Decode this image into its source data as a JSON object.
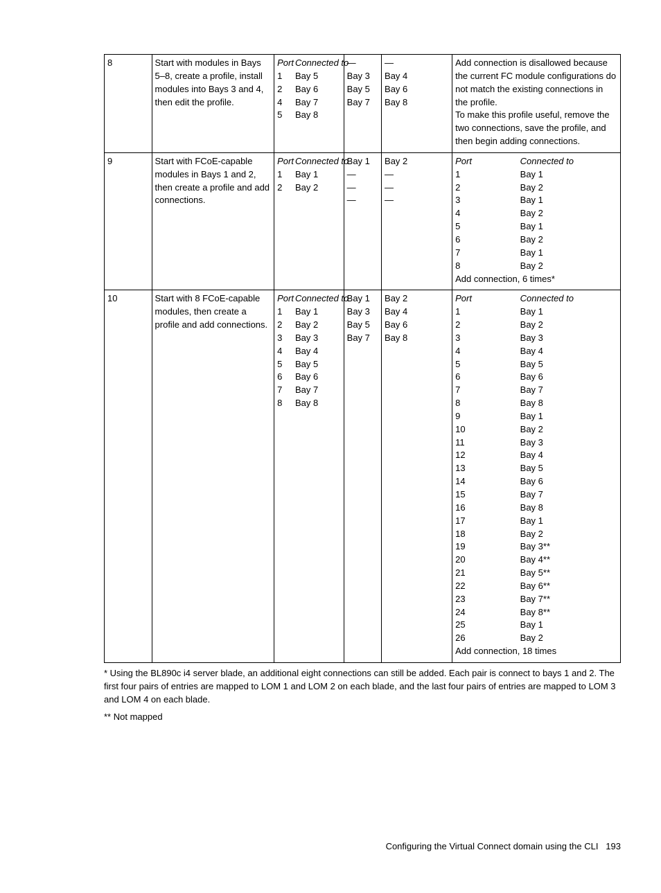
{
  "table": {
    "columns": [
      "c1",
      "c2",
      "c3",
      "c4",
      "c5",
      "c6"
    ],
    "rows": [
      {
        "num": "8",
        "desc": "Start with modules in Bays 5–8, create a profile, install modules into Bays 3 and 4, then edit the profile.",
        "col3": {
          "header": [
            "Port",
            "Connected to"
          ],
          "rows": [
            [
              "1",
              "Bay 5"
            ],
            [
              "2",
              "Bay 6"
            ],
            [
              "4",
              "Bay 7"
            ],
            [
              "5",
              "Bay 8"
            ]
          ],
          "foot": ""
        },
        "col4": [
          "—",
          "Bay 3",
          "Bay 5",
          "Bay 7"
        ],
        "col5": [
          "—",
          "Bay 4",
          "Bay 6",
          "Bay 8"
        ],
        "col6_text": "Add connection is disallowed because the current FC module configurations do not match the existing connections in the profile.\nTo make this profile useful, remove the two connections, save the profile, and then begin adding connections."
      },
      {
        "num": "9",
        "desc": "Start with FCoE-capable modules in Bays 1 and 2, then create a profile and add connections.",
        "col3": {
          "header": [
            "Port",
            "Connected to"
          ],
          "rows": [
            [
              "1",
              "Bay 1"
            ],
            [
              "2",
              "Bay 2"
            ]
          ],
          "foot": ""
        },
        "col4": [
          "Bay 1",
          "—",
          "—",
          "—"
        ],
        "col5": [
          "Bay 2",
          "—",
          "—",
          "—"
        ],
        "col6": {
          "header": [
            "Port",
            "Connected to"
          ],
          "rows": [
            [
              "1",
              "Bay 1"
            ],
            [
              "2",
              "Bay 2"
            ],
            [
              "3",
              "Bay 1"
            ],
            [
              "4",
              "Bay 2"
            ],
            [
              "5",
              "Bay 1"
            ],
            [
              "6",
              "Bay 2"
            ],
            [
              "7",
              "Bay 1"
            ],
            [
              "8",
              "Bay 2"
            ]
          ],
          "foot": "Add connection, 6 times*"
        }
      },
      {
        "num": "10",
        "desc": "Start with 8 FCoE-capable modules, then create a profile and add connections.",
        "col3": {
          "header": [
            "Port",
            "Connected to"
          ],
          "rows": [
            [
              "1",
              "Bay 1"
            ],
            [
              "2",
              "Bay 2"
            ],
            [
              "3",
              "Bay 3"
            ],
            [
              "4",
              "Bay 4"
            ],
            [
              "5",
              "Bay 5"
            ],
            [
              "6",
              "Bay 6"
            ],
            [
              "7",
              "Bay 7"
            ],
            [
              "8",
              "Bay 8"
            ]
          ],
          "foot": ""
        },
        "col4": [
          "Bay 1",
          "Bay 3",
          "Bay 5",
          "Bay 7"
        ],
        "col5": [
          "Bay 2",
          "Bay 4",
          "Bay 6",
          "Bay 8"
        ],
        "col6": {
          "header": [
            "Port",
            "Connected to"
          ],
          "rows": [
            [
              "1",
              "Bay 1"
            ],
            [
              "2",
              "Bay 2"
            ],
            [
              "3",
              "Bay 3"
            ],
            [
              "4",
              "Bay 4"
            ],
            [
              "5",
              "Bay 5"
            ],
            [
              "6",
              "Bay 6"
            ],
            [
              "7",
              "Bay 7"
            ],
            [
              "8",
              "Bay 8"
            ],
            [
              "9",
              "Bay 1"
            ],
            [
              "10",
              "Bay 2"
            ],
            [
              "11",
              "Bay 3"
            ],
            [
              "12",
              "Bay 4"
            ],
            [
              "13",
              "Bay 5"
            ],
            [
              "14",
              "Bay 6"
            ],
            [
              "15",
              "Bay 7"
            ],
            [
              "16",
              "Bay 8"
            ],
            [
              "17",
              "Bay 1"
            ],
            [
              "18",
              "Bay 2"
            ],
            [
              "19",
              "Bay 3**"
            ],
            [
              "20",
              "Bay 4**"
            ],
            [
              "21",
              "Bay 5**"
            ],
            [
              "22",
              "Bay 6**"
            ],
            [
              "23",
              "Bay 7**"
            ],
            [
              "24",
              "Bay 8**"
            ],
            [
              "25",
              "Bay 1"
            ],
            [
              "26",
              "Bay 2"
            ]
          ],
          "foot": "Add connection, 18 times"
        }
      }
    ]
  },
  "footnote1": "* Using the BL890c i4 server blade, an additional eight connections can still be added. Each pair is connect to bays 1 and 2. The first four pairs of entries are mapped to LOM 1 and LOM 2 on each blade, and the last four pairs of entries are mapped to LOM 3 and LOM 4 on each blade.",
  "footnote2": "** Not mapped",
  "footer_text": "Configuring the Virtual Connect domain using the CLI",
  "footer_page": "193"
}
